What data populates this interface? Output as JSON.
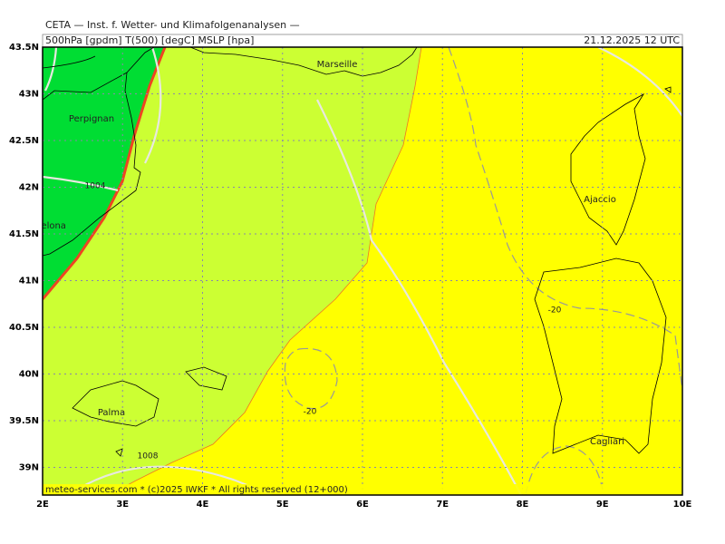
{
  "header": {
    "title": "CETA — Inst. f. Wetter- und Klimafolgenanalysen —",
    "parameters": "500hPa [gpdm] T(500) [degC] MSLP [hpa]",
    "valid_time": "21.12.2025 12 UTC"
  },
  "map": {
    "latitude_labels": [
      "43.5N",
      "43N",
      "42.5N",
      "42N",
      "41.5N",
      "41N",
      "40.5N",
      "40N",
      "39.5N",
      "39N"
    ],
    "longitude_labels": [
      "2E",
      "3E",
      "4E",
      "5E",
      "6E",
      "7E",
      "8E",
      "9E",
      "10E"
    ],
    "places": [
      "Marseille",
      "Perpignan",
      "Barcelona",
      "Ajaccio",
      "Palma",
      "Cagliari"
    ],
    "contour_labels": [
      "1004",
      "1008",
      "-20",
      "-20"
    ]
  },
  "footer": "meteo-services.com * (c)2025 IWKF * All rights reserved (12+000)"
}
